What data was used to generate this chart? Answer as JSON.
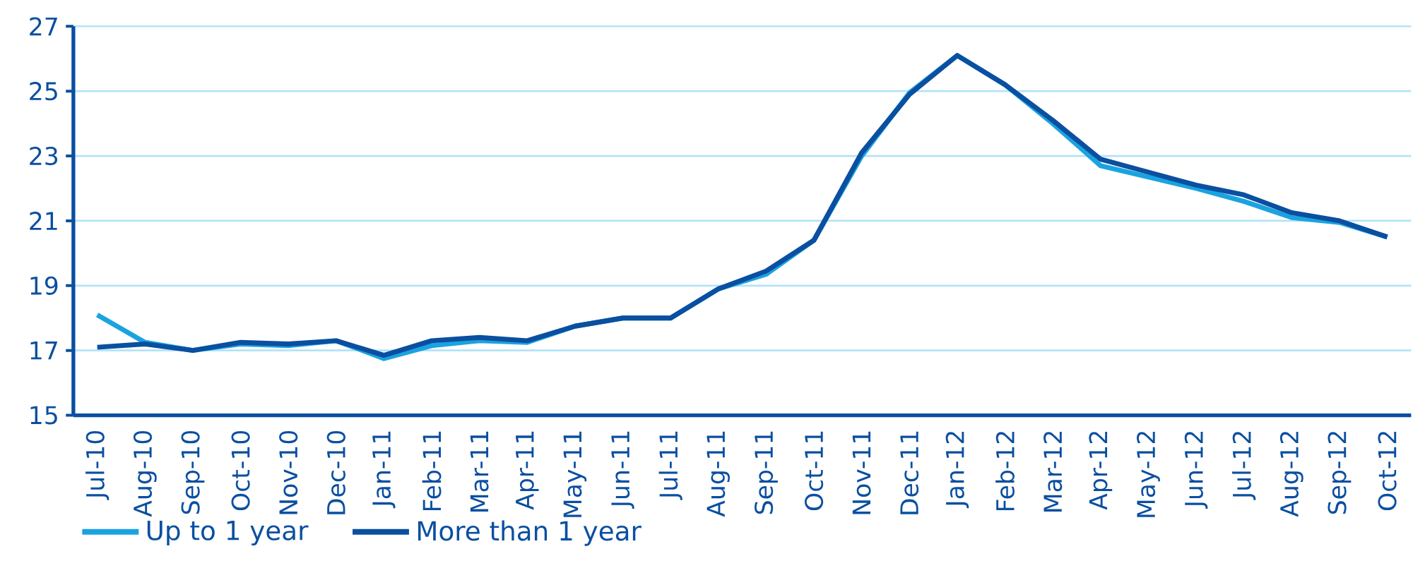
{
  "chart_data": {
    "type": "line",
    "categories": [
      "Jul-10",
      "Aug-10",
      "Sep-10",
      "Oct-10",
      "Nov-10",
      "Dec-10",
      "Jan-11",
      "Feb-11",
      "Mar-11",
      "Apr-11",
      "May-11",
      "Jun-11",
      "Jul-11",
      "Aug-11",
      "Sep-11",
      "Oct-11",
      "Nov-11",
      "Dec-11",
      "Jan-12",
      "Feb-12",
      "Mar-12",
      "Apr-12",
      "May-12",
      "Jun-12",
      "Jul-12",
      "Aug-12",
      "Sep-12",
      "Oct-12"
    ],
    "series": [
      {
        "name": "Up to 1 year",
        "color": "#1aa3e0",
        "values": [
          18.1,
          17.25,
          17.0,
          17.2,
          17.15,
          17.3,
          16.75,
          17.15,
          17.3,
          17.25,
          17.75,
          18.0,
          18.0,
          18.9,
          19.35,
          20.4,
          23.0,
          24.95,
          26.1,
          25.2,
          24.0,
          22.7,
          22.35,
          22.0,
          21.6,
          21.1,
          20.95,
          20.5
        ]
      },
      {
        "name": "More than 1 year",
        "color": "#0a4fa0",
        "values": [
          17.1,
          17.2,
          17.0,
          17.25,
          17.2,
          17.3,
          16.85,
          17.3,
          17.4,
          17.3,
          17.75,
          18.0,
          18.0,
          18.9,
          19.45,
          20.4,
          23.1,
          24.9,
          26.1,
          25.2,
          24.1,
          22.9,
          22.5,
          22.1,
          21.8,
          21.25,
          21.0,
          20.5
        ]
      }
    ],
    "ylim": [
      15,
      27
    ],
    "yticks": [
      15,
      17,
      19,
      21,
      23,
      25,
      27
    ],
    "grid": "y",
    "legend": "bottom",
    "line_style": "solid"
  }
}
